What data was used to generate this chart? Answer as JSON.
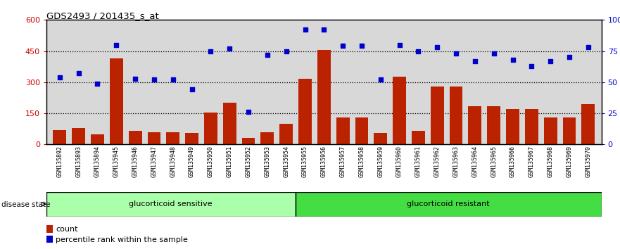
{
  "title": "GDS2493 / 201435_s_at",
  "samples": [
    "GSM135892",
    "GSM135893",
    "GSM135894",
    "GSM135945",
    "GSM135946",
    "GSM135947",
    "GSM135948",
    "GSM135949",
    "GSM135950",
    "GSM135951",
    "GSM135952",
    "GSM135953",
    "GSM135954",
    "GSM135955",
    "GSM135956",
    "GSM135957",
    "GSM135958",
    "GSM135959",
    "GSM135960",
    "GSM135961",
    "GSM135962",
    "GSM135963",
    "GSM135964",
    "GSM135965",
    "GSM135966",
    "GSM135967",
    "GSM135968",
    "GSM135969",
    "GSM135970"
  ],
  "counts": [
    70,
    80,
    50,
    415,
    65,
    60,
    60,
    55,
    155,
    200,
    30,
    60,
    100,
    315,
    455,
    130,
    130,
    55,
    325,
    65,
    280,
    280,
    185,
    185,
    170,
    170,
    130,
    130,
    195
  ],
  "percentile": [
    54,
    57,
    49,
    80,
    53,
    52,
    52,
    44,
    75,
    77,
    26,
    72,
    75,
    92,
    92,
    79,
    79,
    52,
    80,
    75,
    78,
    73,
    67,
    73,
    68,
    63,
    67,
    70,
    78
  ],
  "group1_count": 13,
  "group2_count": 16,
  "group1_label": "glucorticoid sensitive",
  "group2_label": "glucorticoid resistant",
  "disease_state_label": "disease state",
  "bar_color": "#bb2200",
  "dot_color": "#0000cc",
  "left_ylim": [
    0,
    600
  ],
  "right_ylim": [
    0,
    100
  ],
  "left_yticks": [
    0,
    150,
    300,
    450,
    600
  ],
  "right_yticks": [
    0,
    25,
    50,
    75,
    100
  ],
  "right_yticklabels": [
    "0",
    "25",
    "50",
    "75",
    "100%"
  ],
  "grid_values": [
    150,
    300,
    450
  ],
  "plot_bg_color": "#d8d8d8",
  "fig_bg_color": "#ffffff",
  "group1_color": "#aaffaa",
  "group2_color": "#44dd44",
  "legend_count_label": "count",
  "legend_pct_label": "percentile rank within the sample"
}
